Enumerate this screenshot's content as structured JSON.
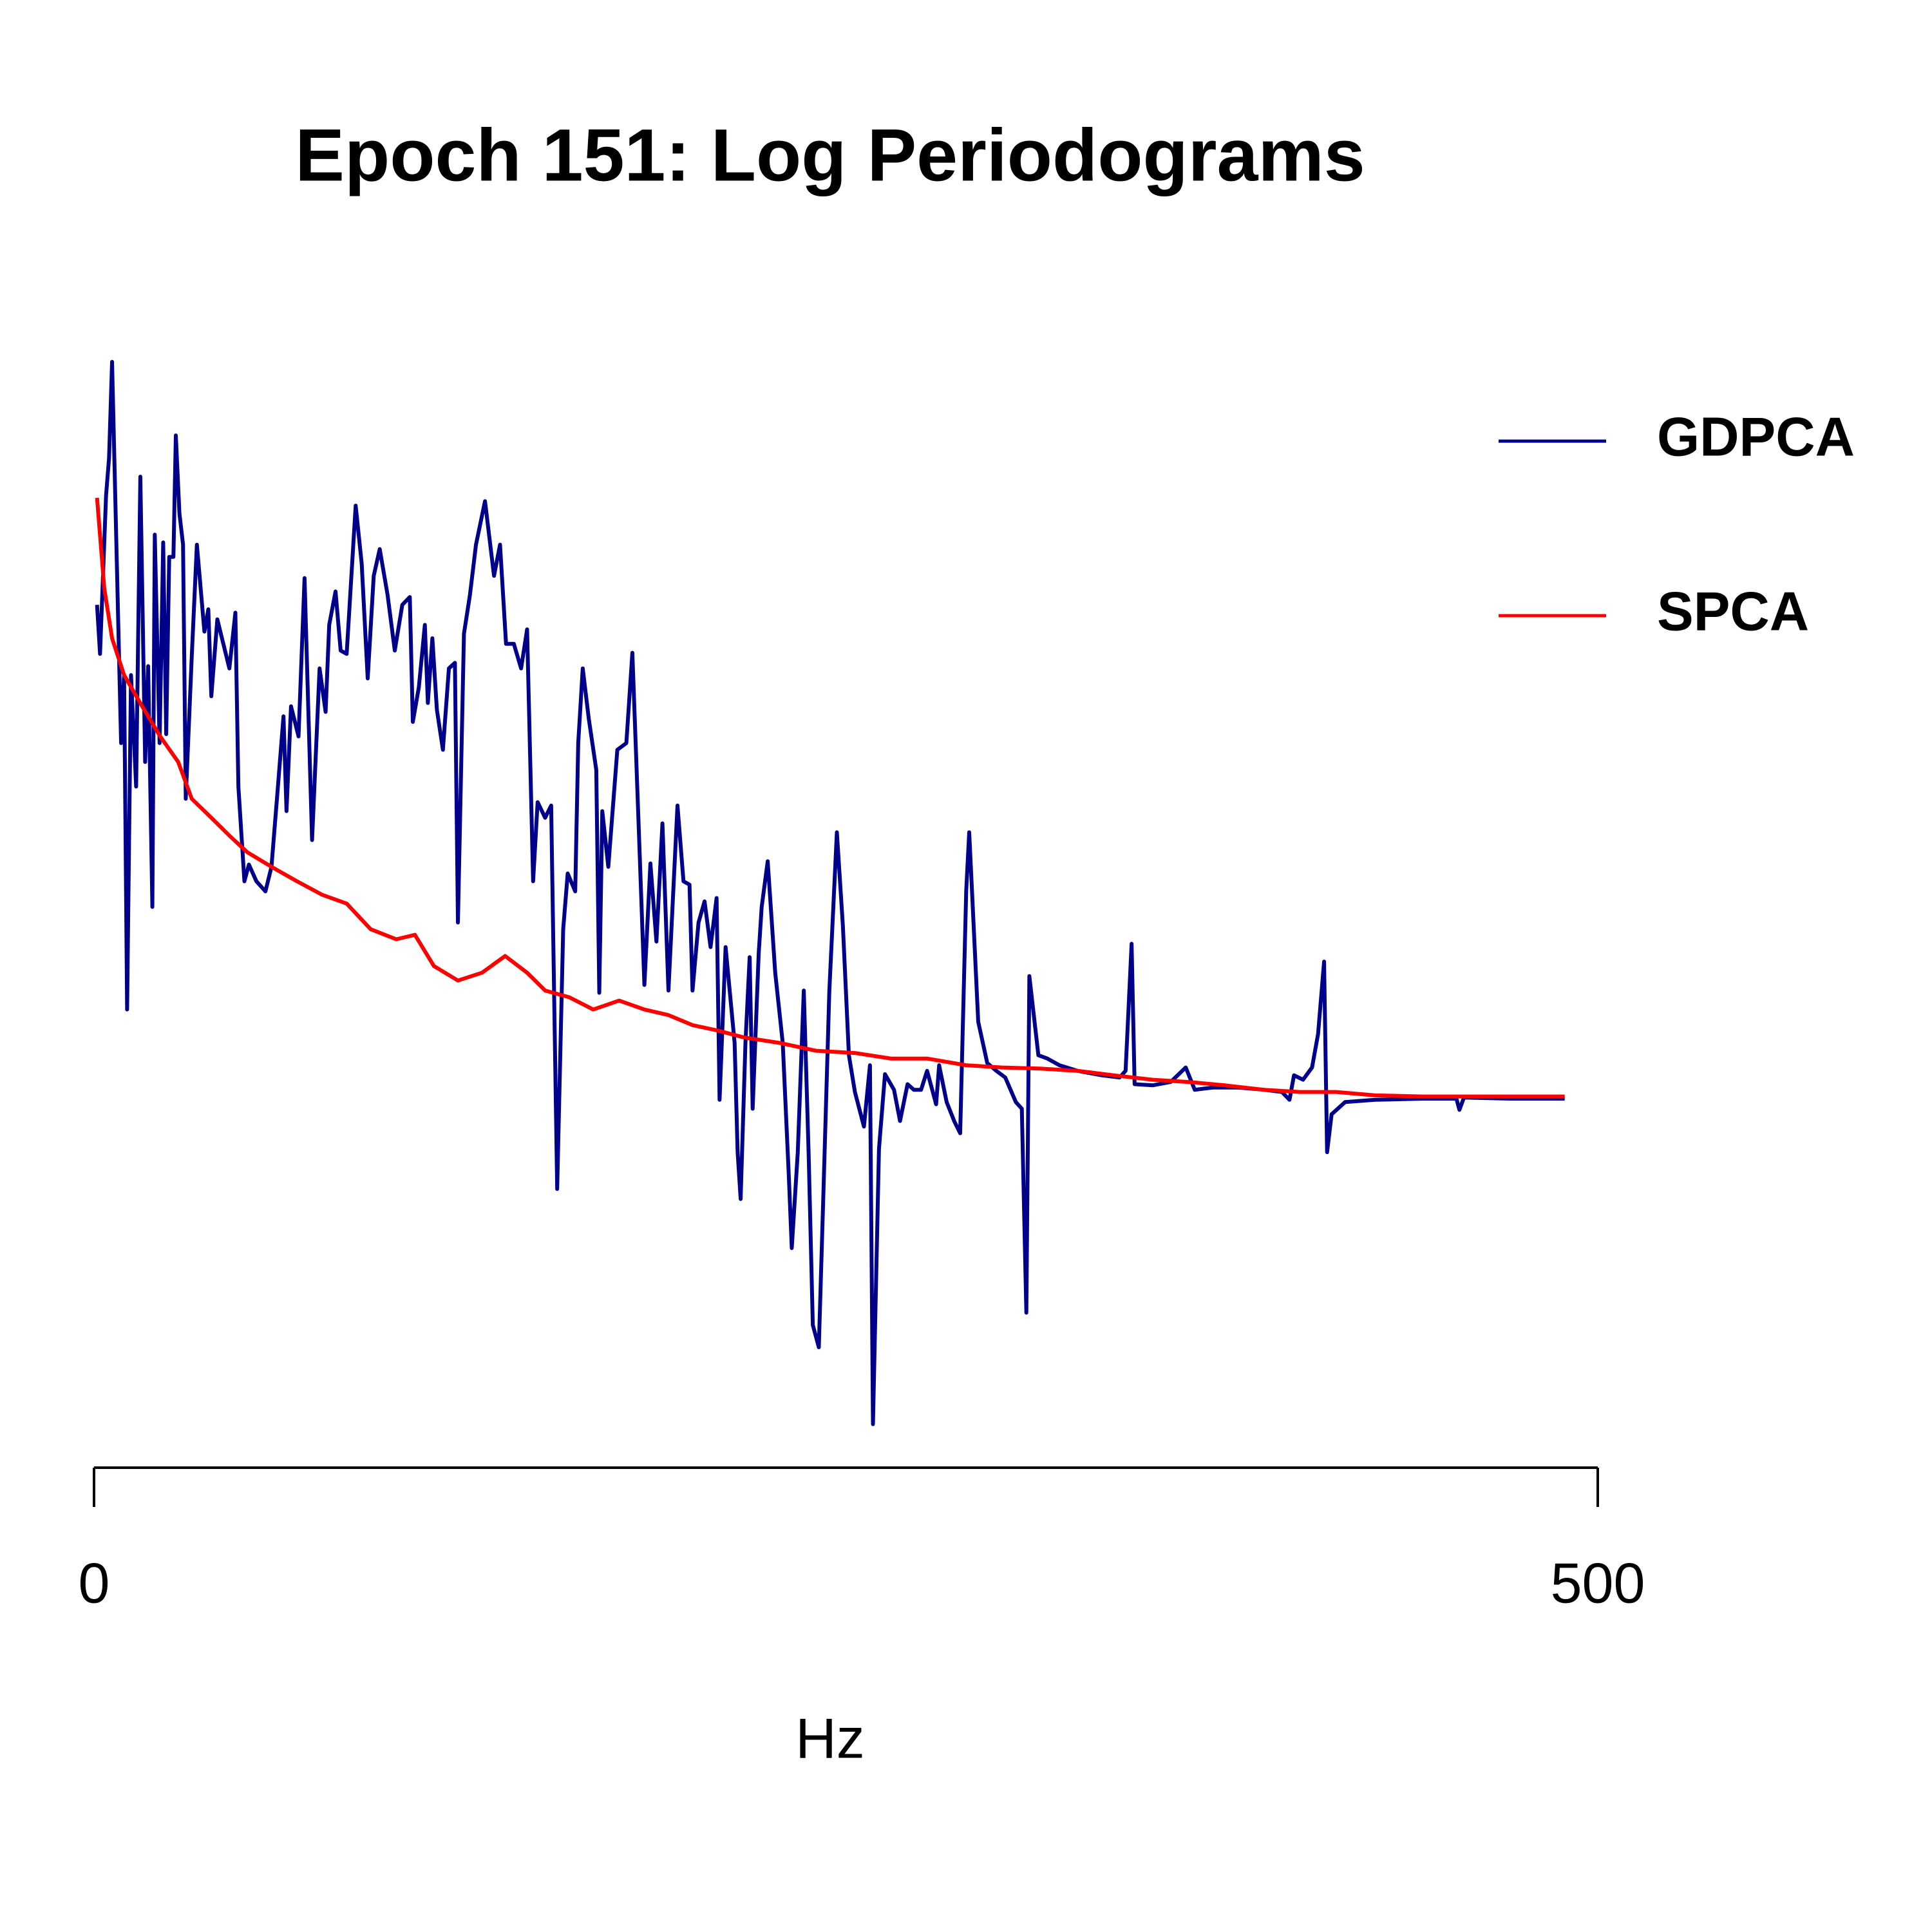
{
  "chart_data": {
    "type": "line",
    "title": "Epoch 151: Log Periodograms",
    "x_label": "Hz",
    "xlim": [
      0,
      500
    ],
    "xticks": [
      0,
      500
    ],
    "ylim": [
      0,
      100
    ],
    "legend": "right",
    "series": [
      {
        "name": "GDPCA",
        "color": "#00008b",
        "x": [
          1,
          2,
          4,
          5,
          6,
          9,
          10,
          11,
          12.3,
          14,
          15.4,
          17,
          18,
          19.4,
          20.2,
          21.8,
          23,
          24,
          25,
          26.4,
          27.2,
          28.4,
          29.6,
          30.5,
          32.5,
          34.2,
          36.7,
          38,
          39,
          41,
          43,
          45,
          47,
          48,
          50,
          51.5,
          54,
          57,
          59,
          61,
          63,
          64,
          65.5,
          68,
          70,
          72.5,
          75,
          77,
          78.2,
          80.3,
          82,
          84,
          87,
          89,
          91,
          93,
          95,
          97.6,
          100,
          102.5,
          105,
          106,
          108,
          110,
          111,
          112.5,
          114,
          116,
          118,
          120,
          121,
          123,
          125,
          127,
          130,
          133,
          135,
          137,
          139.6,
          142,
          144,
          146,
          147.5,
          150,
          152,
          154,
          156,
          157.5,
          160,
          161,
          162.5,
          164.5,
          167,
          168,
          169,
          171,
          174,
          177,
          179,
          181,
          183,
          185,
          187,
          189,
          191,
          193,
          194,
          196,
          198,
          199,
          201,
          203,
          205,
          207,
          208,
          210,
          213,
          214,
          215,
          216.6,
          218,
          219,
          221,
          222,
          224,
          226.5,
          229,
          231,
          232,
          234,
          236,
          237.6,
          239,
          241,
          242.5,
          244.5,
          247,
          249,
          251,
          253,
          256,
          258,
          259,
          261,
          263,
          266,
          268,
          270.5,
          272.6,
          275,
          277,
          280,
          281,
          283.5,
          286,
          288,
          290,
          291,
          294,
          297,
          300,
          303,
          306.5,
          308.5,
          310,
          311,
          314,
          317,
          321,
          327,
          335,
          341,
          343,
          345,
          346,
          352,
          358,
          363,
          366,
          372,
          380.5,
          389,
          395,
          397.5,
          399,
          402,
          405,
          407,
          409,
          410,
          411.5,
          416,
          426,
          442,
          453,
          454,
          455.5,
          471,
          489
        ],
        "values": [
          77.4,
          73,
          87.2,
          90.6,
          99.2,
          65,
          71.1,
          41.1,
          71.1,
          61.1,
          88.9,
          63.3,
          71.9,
          50.3,
          83.7,
          65,
          83,
          65.8,
          81.7,
          81.7,
          92.6,
          85.6,
          82.8,
          60,
          72.8,
          82.8,
          75,
          77,
          69.2,
          76.1,
          73.9,
          71.7,
          76.7,
          61.1,
          52.6,
          54.1,
          52.6,
          51.7,
          53.9,
          60.6,
          67.4,
          58.9,
          68.3,
          65.6,
          79.8,
          56.3,
          71.7,
          67.8,
          75.6,
          78.6,
          73.3,
          73,
          86.3,
          81.1,
          70.8,
          80,
          82.4,
          78.3,
          73.3,
          77.4,
          78.1,
          66.9,
          70,
          75.6,
          68.6,
          74.4,
          68,
          64.4,
          71.7,
          72.2,
          48.9,
          74.8,
          78.3,
          82.8,
          86.7,
          80,
          82.8,
          73.9,
          73.9,
          71.7,
          75.2,
          52.6,
          59.7,
          58.3,
          59.4,
          25,
          48.3,
          53.3,
          51.7,
          65,
          71.7,
          67.2,
          62.6,
          42.6,
          58.9,
          53.9,
          64.4,
          65,
          73.1,
          58.3,
          43.3,
          54.2,
          47.2,
          57.8,
          42.8,
          53.9,
          59.4,
          52.6,
          52.3,
          42.8,
          48.9,
          50.8,
          46.7,
          51.1,
          33,
          46.7,
          38.1,
          28.3,
          24.1,
          38.1,
          45.8,
          32.2,
          46.1,
          50.3,
          54.4,
          44.4,
          38.1,
          26.3,
          19.7,
          28.3,
          42.8,
          28.3,
          12.8,
          10.8,
          24.4,
          42.8,
          57,
          48.6,
          37,
          33.7,
          30.6,
          36.1,
          3.9,
          28.6,
          35.3,
          33.9,
          31.1,
          34.4,
          33.9,
          33.9,
          35.6,
          32.6,
          36.1,
          32.8,
          31.1,
          30,
          51.7,
          57,
          40,
          36.3,
          35.6,
          35,
          32.8,
          32.2,
          13.9,
          44.1,
          37,
          36.7,
          36.1,
          35.6,
          35.2,
          35,
          35.6,
          47,
          34.4,
          34.3,
          34.6,
          35.9,
          33.9,
          34.1,
          34.1,
          33.9,
          33.7,
          33,
          35.2,
          34.8,
          35.9,
          38.9,
          45.4,
          28.3,
          31.7,
          32.8,
          33,
          33.1,
          33.1,
          32.1,
          33.2,
          33.1,
          33.1
        ]
      },
      {
        "name": "SPCA",
        "color": "#ff0000",
        "x": [
          1,
          3.4,
          6,
          10,
          16,
          22,
          28,
          32.5,
          39,
          45,
          51,
          59,
          67.5,
          75.8,
          84,
          92,
          100.5,
          106.7,
          113,
          121,
          129,
          136.7,
          144,
          150,
          158,
          166,
          174.6,
          183,
          191,
          199,
          207.6,
          216,
          228,
          240,
          253,
          265,
          277,
          290,
          302,
          314.5,
          327,
          339,
          352,
          364,
          376,
          389,
          401,
          413,
          426,
          442,
          463,
          489
        ],
        "values": [
          87,
          78.9,
          74.4,
          71.1,
          68.3,
          65.6,
          63.3,
          60,
          58.3,
          56.7,
          55.2,
          53.9,
          52.6,
          51.4,
          50.6,
          48.3,
          47.4,
          47.8,
          45,
          43.7,
          44.4,
          45.9,
          44.4,
          42.8,
          42.2,
          41.1,
          41.9,
          41.1,
          40.6,
          39.7,
          39.2,
          38.6,
          38.1,
          37.4,
          37.2,
          36.7,
          36.7,
          36.1,
          35.9,
          35.8,
          35.6,
          35.2,
          34.8,
          34.6,
          34.3,
          33.9,
          33.7,
          33.7,
          33.4,
          33.3,
          33.3,
          33.3
        ]
      }
    ]
  }
}
